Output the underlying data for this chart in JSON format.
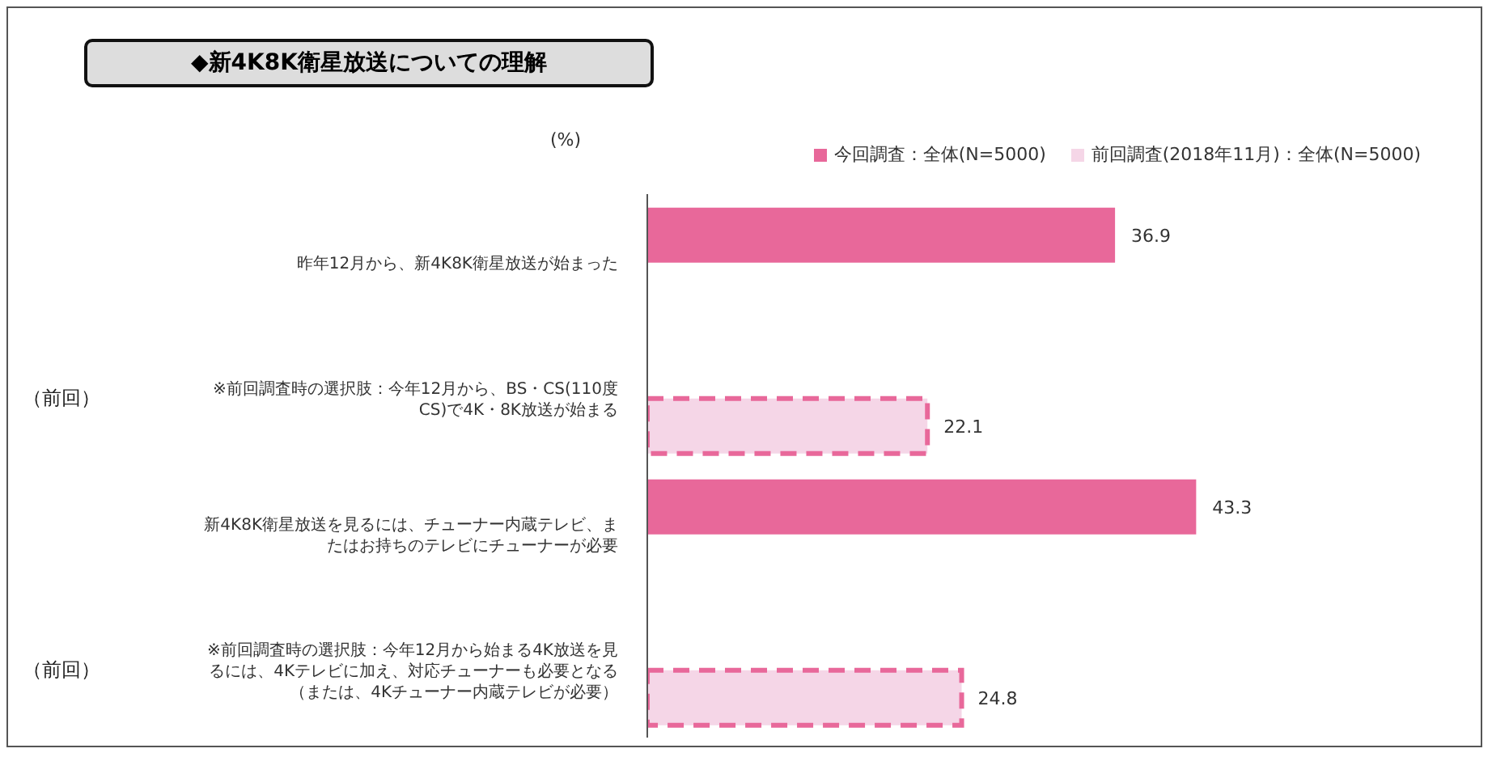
{
  "chart_data": {
    "type": "bar",
    "orientation": "horizontal",
    "title": "◆新4K8K衛星放送についての理解",
    "xlabel": "(%)",
    "categories": [
      "昨年12月から、新4K8K衛星放送が始まった",
      "（前回）\t※前回調査時の選択肢：今年12月から、BS・CS(110度CS)で4K・8K放送が始まる",
      "新4K8K衛星放送を見るには、チューナー内蔵テレビ、またはお持ちのテレビにチューナーが必要",
      "（前回）\t※前回調査時の選択肢：今年12月から始まる4K放送を見るには、4Kテレビに加え、対応チューナーも必要となる（または、4Kチューナー内蔵テレビが必要）"
    ],
    "series": [
      {
        "name": "今回調査：全体(N=5000)",
        "color": "#e8689a",
        "values": [
          36.9,
          null,
          43.3,
          null
        ]
      },
      {
        "name": "前回調査(2018年11月)：全体(N=5000)",
        "color": "#f5d6e7",
        "line_style": "dashed",
        "values": [
          null,
          22.1,
          null,
          24.8
        ]
      }
    ],
    "tick_labels": "y",
    "data_labels": true,
    "legend": "top right"
  }
}
